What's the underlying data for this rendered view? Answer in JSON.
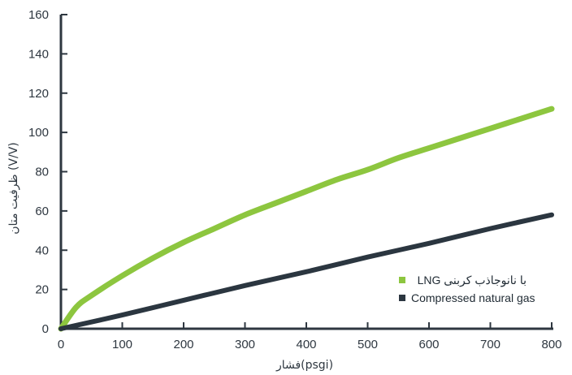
{
  "chart_data": {
    "type": "line",
    "xlabel": "فشار(psgi)",
    "ylabel": "ظرفیت متان (V/V)",
    "xlim": [
      0,
      800
    ],
    "ylim": [
      0,
      160
    ],
    "x_ticks": [
      "0",
      "100",
      "200",
      "300",
      "400",
      "500",
      "600",
      "700",
      "800"
    ],
    "y_ticks": [
      "0",
      "20",
      "40",
      "60",
      "80",
      "100",
      "120",
      "140",
      "160"
    ],
    "grid": false,
    "legend_position": "bottom-right",
    "series": [
      {
        "name": "LNG با نانوجاذب کربنی",
        "color": "#8dc63f",
        "x": [
          0,
          25,
          50,
          100,
          150,
          200,
          250,
          300,
          350,
          400,
          450,
          500,
          550,
          600,
          650,
          700,
          750,
          800
        ],
        "y": [
          0,
          11,
          17,
          27,
          36,
          44,
          51,
          58,
          64,
          70,
          76,
          81,
          87,
          92,
          97,
          102,
          107,
          112
        ]
      },
      {
        "name": "Compressed natural gas",
        "color": "#2b3640",
        "x": [
          0,
          100,
          200,
          300,
          400,
          500,
          600,
          700,
          800
        ],
        "y": [
          0,
          7,
          14.5,
          22,
          29,
          36.5,
          43.5,
          51,
          58
        ]
      }
    ]
  }
}
